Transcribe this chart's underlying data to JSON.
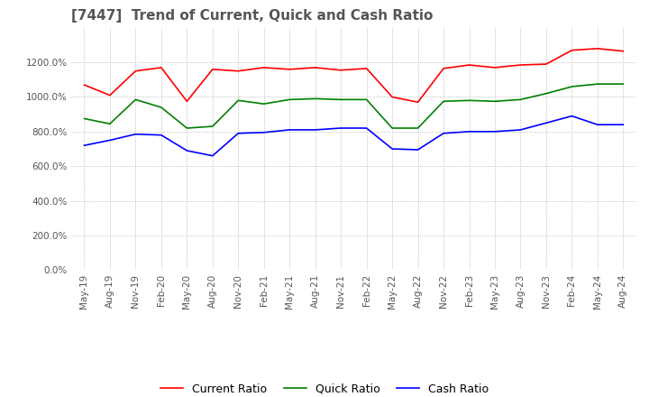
{
  "title": "[7447]  Trend of Current, Quick and Cash Ratio",
  "x_labels": [
    "May-19",
    "Aug-19",
    "Nov-19",
    "Feb-20",
    "May-20",
    "Aug-20",
    "Nov-20",
    "Feb-21",
    "May-21",
    "Aug-21",
    "Nov-21",
    "Feb-22",
    "May-22",
    "Aug-22",
    "Nov-22",
    "Feb-23",
    "May-23",
    "Aug-23",
    "Nov-23",
    "Feb-24",
    "May-24",
    "Aug-24"
  ],
  "current_ratio": [
    1070,
    1010,
    1150,
    1170,
    975,
    1160,
    1150,
    1170,
    1160,
    1170,
    1155,
    1165,
    1000,
    970,
    1165,
    1185,
    1170,
    1185,
    1190,
    1270,
    1280,
    1265
  ],
  "quick_ratio": [
    875,
    845,
    985,
    940,
    820,
    830,
    980,
    960,
    985,
    990,
    985,
    985,
    820,
    820,
    975,
    980,
    975,
    985,
    1020,
    1060,
    1075,
    1075
  ],
  "cash_ratio": [
    720,
    750,
    785,
    780,
    690,
    660,
    790,
    795,
    810,
    810,
    820,
    820,
    700,
    695,
    790,
    800,
    800,
    810,
    850,
    890,
    840,
    840
  ],
  "current_color": "#FF0000",
  "quick_color": "#008000",
  "cash_color": "#0000FF",
  "ylim": [
    0,
    1400
  ],
  "yticks": [
    0,
    200,
    400,
    600,
    800,
    1000,
    1200
  ],
  "background_color": "#FFFFFF",
  "grid_color": "#AAAAAA",
  "title_fontsize": 11,
  "legend_labels": [
    "Current Ratio",
    "Quick Ratio",
    "Cash Ratio"
  ]
}
